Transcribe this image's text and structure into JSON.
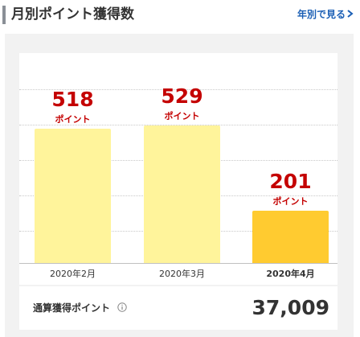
{
  "header": {
    "title": "月別ポイント獲得数",
    "link_label": "年別で見る"
  },
  "chart_data": {
    "type": "bar",
    "categories": [
      "2020年2月",
      "2020年3月",
      "2020年4月"
    ],
    "values": [
      518,
      529,
      201
    ],
    "value_labels": [
      "518",
      "529",
      "201"
    ],
    "unit": "ポイント",
    "highlighted_category": "2020年4月",
    "colors": {
      "bar": "#fff49b",
      "bar_current": "#ffcb30",
      "value_text": "#c40000"
    },
    "grid": true
  },
  "summary": {
    "label": "通算獲得ポイント",
    "value": "37,009",
    "info_icon": "info-circle-icon"
  }
}
